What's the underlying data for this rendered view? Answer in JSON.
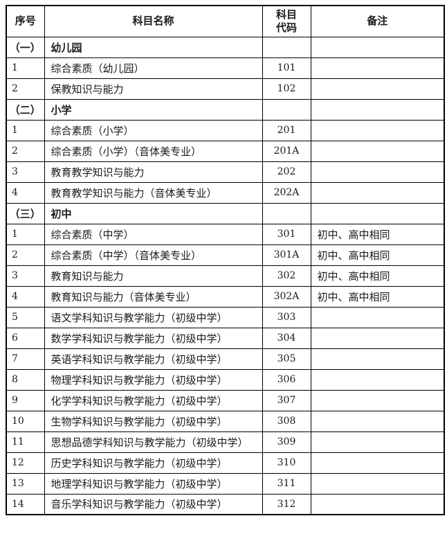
{
  "page": {
    "background_color": "#ffffff",
    "border_color": "#000000",
    "text_color": "#1a1a1a"
  },
  "table": {
    "headers": {
      "no": "序号",
      "name": "科目名称",
      "code": "科目\n代码",
      "note": "备注"
    },
    "sections": [
      {
        "label": "（一）",
        "title": "幼儿园",
        "rows": [
          {
            "no": "1",
            "name": "综合素质（幼儿园）",
            "code": "101",
            "note": ""
          },
          {
            "no": "2",
            "name": "保教知识与能力",
            "code": "102",
            "note": ""
          }
        ]
      },
      {
        "label": "（二）",
        "title": "小学",
        "rows": [
          {
            "no": "1",
            "name": "综合素质（小学）",
            "code": "201",
            "note": ""
          },
          {
            "no": "2",
            "name": "综合素质（小学）（音体美专业）",
            "code": "201A",
            "note": ""
          },
          {
            "no": "3",
            "name": "教育教学知识与能力",
            "code": "202",
            "note": ""
          },
          {
            "no": "4",
            "name": "教育教学知识与能力（音体美专业）",
            "code": "202A",
            "note": ""
          }
        ]
      },
      {
        "label": "（三）",
        "title": "初中",
        "rows": [
          {
            "no": "1",
            "name": "综合素质（中学）",
            "code": "301",
            "note": "初中、高中相同"
          },
          {
            "no": "2",
            "name": "综合素质（中学）（音体美专业）",
            "code": "301A",
            "note": "初中、高中相同"
          },
          {
            "no": "3",
            "name": "教育知识与能力",
            "code": "302",
            "note": "初中、高中相同"
          },
          {
            "no": "4",
            "name": "教育知识与能力（音体美专业）",
            "code": "302A",
            "note": "初中、高中相同"
          },
          {
            "no": "5",
            "name": "语文学科知识与教学能力（初级中学）",
            "code": "303",
            "note": ""
          },
          {
            "no": "6",
            "name": "数学学科知识与教学能力（初级中学）",
            "code": "304",
            "note": ""
          },
          {
            "no": "7",
            "name": "英语学科知识与教学能力（初级中学）",
            "code": "305",
            "note": ""
          },
          {
            "no": "8",
            "name": "物理学科知识与教学能力（初级中学）",
            "code": "306",
            "note": ""
          },
          {
            "no": "9",
            "name": "化学学科知识与教学能力（初级中学）",
            "code": "307",
            "note": ""
          },
          {
            "no": "10",
            "name": "生物学科知识与教学能力（初级中学）",
            "code": "308",
            "note": ""
          },
          {
            "no": "11",
            "name": "思想品德学科知识与教学能力（初级中学）",
            "code": "309",
            "note": ""
          },
          {
            "no": "12",
            "name": "历史学科知识与教学能力（初级中学）",
            "code": "310",
            "note": ""
          },
          {
            "no": "13",
            "name": "地理学科知识与教学能力（初级中学）",
            "code": "311",
            "note": ""
          },
          {
            "no": "14",
            "name": "音乐学科知识与教学能力（初级中学）",
            "code": "312",
            "note": ""
          }
        ]
      }
    ]
  }
}
